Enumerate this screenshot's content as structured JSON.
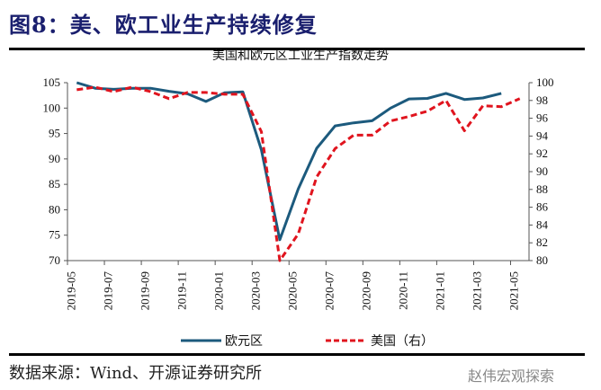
{
  "figure_title": "图8：美、欧工业生产持续修复",
  "source": "数据来源：Wind、开源证券研究所",
  "watermark": "赵伟宏观探索",
  "colors": {
    "eurozone": "#1c5a7d",
    "us": "#e0141e"
  },
  "chart_data": {
    "type": "line",
    "title": "美国和欧元区工业生产指数走势",
    "x": [
      "2019-05",
      "2019-06",
      "2019-07",
      "2019-08",
      "2019-09",
      "2019-10",
      "2019-11",
      "2019-12",
      "2020-01",
      "2020-02",
      "2020-03",
      "2020-04",
      "2020-05",
      "2020-06",
      "2020-07",
      "2020-08",
      "2020-09",
      "2020-10",
      "2020-11",
      "2020-12",
      "2021-01",
      "2021-02",
      "2021-03",
      "2021-04",
      "2021-05"
    ],
    "x_tick_labels": [
      "2019-05",
      "2019-07",
      "2019-09",
      "2019-11",
      "2020-01",
      "2020-03",
      "2020-05",
      "2020-07",
      "2020-09",
      "2020-11",
      "2021-01",
      "2021-03",
      "2021-05"
    ],
    "y_left": {
      "lim": [
        70,
        105
      ],
      "ticks": [
        70,
        75,
        80,
        85,
        90,
        95,
        100,
        105
      ]
    },
    "y_right": {
      "lim": [
        80,
        100
      ],
      "ticks": [
        80,
        82,
        84,
        86,
        88,
        90,
        92,
        94,
        96,
        98,
        100
      ]
    },
    "series": [
      {
        "name": "欧元区",
        "axis": "left",
        "style": "solid",
        "values": [
          105.0,
          103.9,
          103.7,
          103.9,
          103.9,
          103.3,
          102.8,
          101.3,
          103.0,
          103.2,
          91.8,
          74.1,
          84.1,
          92.1,
          96.5,
          97.1,
          97.5,
          100.0,
          101.8,
          101.9,
          102.9,
          101.7,
          102.0,
          102.9,
          null
        ]
      },
      {
        "name": "美国（右）",
        "axis": "right",
        "style": "dashed",
        "values": [
          99.2,
          99.5,
          99.0,
          99.5,
          99.0,
          98.2,
          98.9,
          98.9,
          98.7,
          98.7,
          94.5,
          80.0,
          83.0,
          89.4,
          92.6,
          94.1,
          94.1,
          95.7,
          96.2,
          96.8,
          98.0,
          94.6,
          97.4,
          97.3,
          98.2
        ]
      }
    ],
    "legend": "bottom",
    "grid": false
  }
}
